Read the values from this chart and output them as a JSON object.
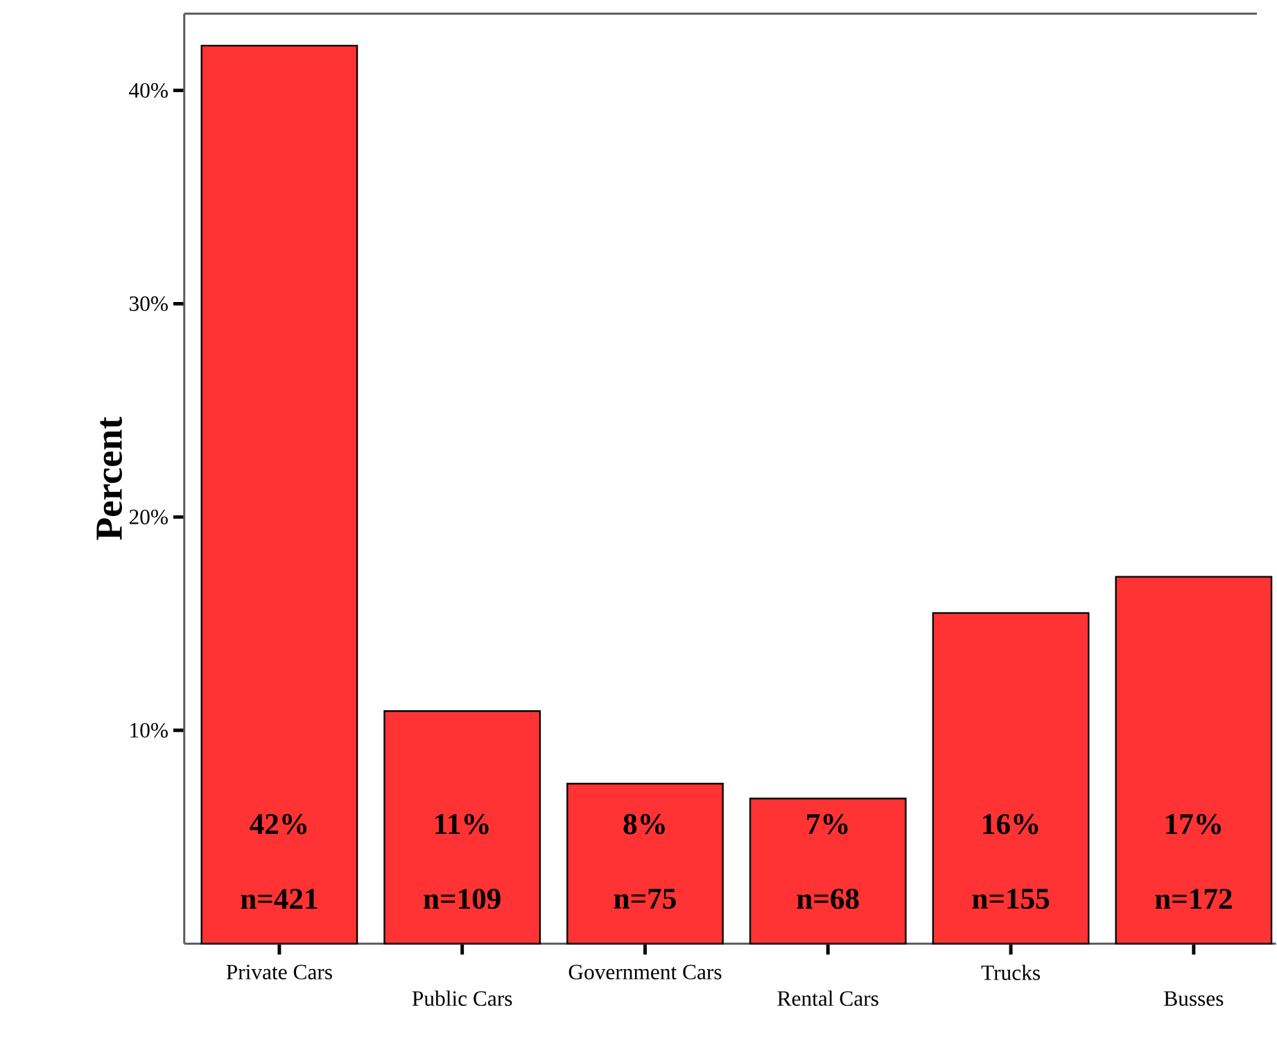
{
  "chart_data": {
    "type": "bar",
    "ylabel": "Percent",
    "categories": [
      "Private Cars",
      "Public Cars",
      "Government Cars",
      "Rental Cars",
      "Trucks",
      "Busses"
    ],
    "values": [
      42.1,
      10.9,
      7.5,
      6.8,
      15.5,
      17.2
    ],
    "color": "#ff3333",
    "value_labels": [
      "42%",
      "11%",
      "8%",
      "7%",
      "16%",
      "17%"
    ],
    "annotations": [
      "n=421",
      "n=109",
      "n=75",
      "n=68",
      "n=155",
      "n=172"
    ],
    "ylim": [
      0,
      43.6
    ],
    "yticks": [
      {
        "value": 10,
        "label": "10%"
      },
      {
        "value": 20,
        "label": "20%"
      },
      {
        "value": 30,
        "label": "30%"
      },
      {
        "value": 40,
        "label": "40%"
      }
    ]
  }
}
